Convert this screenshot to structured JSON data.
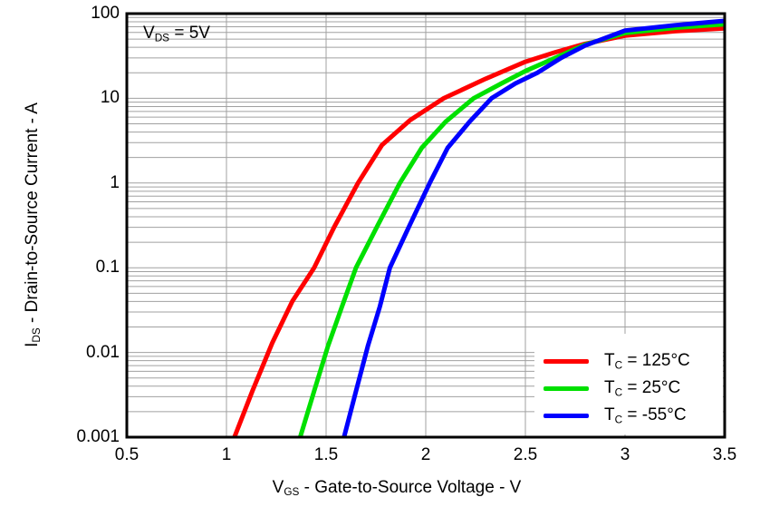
{
  "chart_data": {
    "type": "line",
    "title": "",
    "annotation": {
      "pre": "V",
      "sub": "DS",
      "post": " = 5V"
    },
    "x_axis": {
      "label_pre": "V",
      "label_sub": "GS",
      "label_post": " - Gate-to-Source Voltage - V",
      "min": 0.5,
      "max": 3.5,
      "scale": "linear",
      "ticks": [
        "0.5",
        "1",
        "1.5",
        "2",
        "2.5",
        "3",
        "3.5"
      ],
      "gridlines_at": [
        1,
        1.5,
        2,
        2.5,
        3
      ]
    },
    "y_axis": {
      "label_pre": "I",
      "label_sub": "DS",
      "label_post": " - Drain-to-Source Current - A",
      "min": 0.001,
      "max": 100,
      "scale": "log",
      "ticks": [
        "100",
        "10",
        "1",
        "0.1",
        "0.01",
        "0.001"
      ]
    },
    "grid": true,
    "grid_color": "#a0a0a0",
    "plot_border_color": "#000000",
    "legend_position": "bottom-right",
    "series": [
      {
        "label_pre": "T",
        "label_sub": "C",
        "label_post": " = 125°C",
        "color": "#ff0000",
        "points": [
          [
            1.04,
            0.001
          ],
          [
            1.13,
            0.0035
          ],
          [
            1.23,
            0.013
          ],
          [
            1.33,
            0.04
          ],
          [
            1.44,
            0.1
          ],
          [
            1.54,
            0.3
          ],
          [
            1.66,
            1
          ],
          [
            1.78,
            2.8
          ],
          [
            1.92,
            5.5
          ],
          [
            2.09,
            10
          ],
          [
            2.3,
            17
          ],
          [
            2.5,
            27
          ],
          [
            2.65,
            35
          ],
          [
            2.8,
            44
          ],
          [
            3.0,
            55
          ],
          [
            3.25,
            62
          ],
          [
            3.5,
            67
          ]
        ]
      },
      {
        "label_pre": "T",
        "label_sub": "C",
        "label_post": " = 25°C",
        "color": "#00e000",
        "points": [
          [
            1.37,
            0.001
          ],
          [
            1.44,
            0.0035
          ],
          [
            1.51,
            0.012
          ],
          [
            1.58,
            0.035
          ],
          [
            1.65,
            0.1
          ],
          [
            1.76,
            0.32
          ],
          [
            1.87,
            1
          ],
          [
            1.98,
            2.6
          ],
          [
            2.1,
            5.3
          ],
          [
            2.24,
            10
          ],
          [
            2.38,
            15
          ],
          [
            2.5,
            21
          ],
          [
            2.65,
            30
          ],
          [
            2.8,
            43
          ],
          [
            3.0,
            59
          ],
          [
            3.25,
            68
          ],
          [
            3.5,
            75
          ]
        ]
      },
      {
        "label_pre": "T",
        "label_sub": "C",
        "label_post": " = -55°C",
        "color": "#0000ff",
        "points": [
          [
            1.59,
            0.001
          ],
          [
            1.65,
            0.0035
          ],
          [
            1.71,
            0.012
          ],
          [
            1.77,
            0.035
          ],
          [
            1.82,
            0.1
          ],
          [
            1.92,
            0.32
          ],
          [
            2.02,
            1
          ],
          [
            2.11,
            2.6
          ],
          [
            2.22,
            5.3
          ],
          [
            2.33,
            10
          ],
          [
            2.45,
            15
          ],
          [
            2.56,
            20
          ],
          [
            2.68,
            30
          ],
          [
            2.8,
            42
          ],
          [
            3.0,
            63
          ],
          [
            3.25,
            73
          ],
          [
            3.5,
            82
          ]
        ]
      }
    ]
  }
}
